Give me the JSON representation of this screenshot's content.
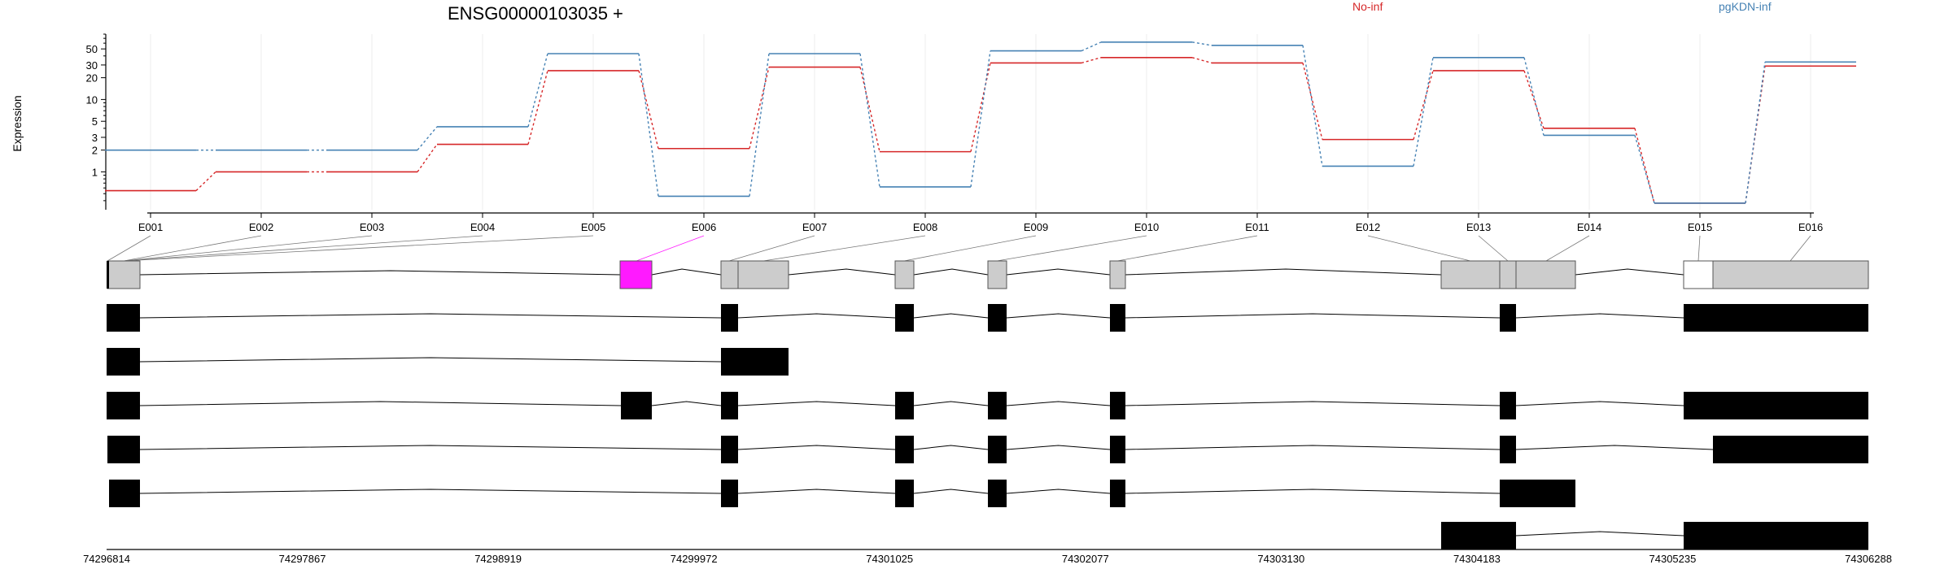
{
  "chart_data": {
    "type": "line",
    "title": "ENSG00000103035 +",
    "ylabel": "Expression",
    "yscale": "log",
    "ylim": [
      0.3,
      80
    ],
    "yticks": [
      1,
      2,
      3,
      5,
      10,
      20,
      30,
      50
    ],
    "grid": true,
    "legend_position": "top-right",
    "exons": [
      "E001",
      "E002",
      "E003",
      "E004",
      "E005",
      "E006",
      "E007",
      "E008",
      "E009",
      "E010",
      "E011",
      "E012",
      "E013",
      "E014",
      "E015",
      "E016"
    ],
    "series": [
      {
        "name": "No-inf",
        "color": "#d62728",
        "values": [
          0.55,
          1.0,
          1.0,
          2.4,
          25,
          2.1,
          28,
          1.9,
          32,
          38,
          32,
          2.8,
          25,
          4.0,
          0.37,
          29
        ]
      },
      {
        "name": "pgKDN-inf",
        "color": "#4682b4",
        "values": [
          2.0,
          2.0,
          2.0,
          4.2,
          43,
          0.46,
          43,
          0.62,
          47,
          62,
          56,
          1.2,
          38,
          3.2,
          0.37,
          33
        ]
      }
    ],
    "gene_model": {
      "coordinate_range": [
        74296814,
        74306288
      ],
      "axis_tick_labels": [
        "74296814",
        "74297867",
        "74298919",
        "74299972",
        "74301025",
        "74302077",
        "74303130",
        "74304183",
        "74305235",
        "74306288"
      ],
      "highlight_exon": "E006",
      "highlight_color": "#ff1aff",
      "exon_fill": "#cccccc",
      "transcript_fill": "#000000",
      "transcript_count": 6
    }
  }
}
